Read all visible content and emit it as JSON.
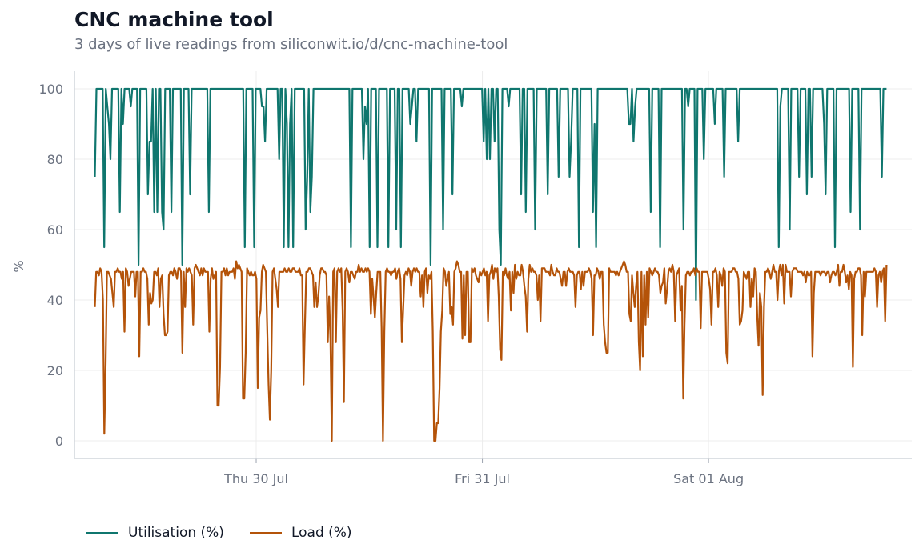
{
  "title": "CNC machine tool",
  "subtitle": "3 days of live readings from siliconwit.io/d/cnc-machine-tool",
  "colors": {
    "utilisation": "#0f766e",
    "load": "#b45309",
    "grid": "#ececec",
    "axis": "#d1d5db"
  },
  "chart_data": {
    "type": "line",
    "title": "CNC machine tool",
    "xlabel": "",
    "ylabel": "%",
    "ylim": [
      -5,
      105
    ],
    "yticks": [
      0,
      20,
      40,
      60,
      80,
      100
    ],
    "xlim": [
      "2025-07-29 04:43",
      "2025-08-01 21:34"
    ],
    "xticks": [
      {
        "date": "2025-07-30",
        "label": "Thu 30 Jul"
      },
      {
        "date": "2025-07-31",
        "label": "Fri 31 Jul"
      },
      {
        "date": "2025-08-01",
        "label": "Sat 01 Aug"
      }
    ],
    "grid": true,
    "legend": "bottom-left",
    "x_start": "2025-07-29 06:53",
    "x_end": "2025-08-01 18:53",
    "x_interval_minutes": 35,
    "series": [
      {
        "name": "Utilisation (%)",
        "values": [
          75,
          100,
          100,
          100,
          100,
          100,
          55,
          100,
          95,
          90,
          80,
          100,
          100,
          100,
          100,
          100,
          65,
          100,
          90,
          100,
          100,
          100,
          100,
          95,
          100,
          100,
          100,
          100,
          50,
          100,
          100,
          100,
          100,
          100,
          70,
          85,
          85,
          100,
          65,
          100,
          65,
          100,
          100,
          65,
          60,
          100,
          100,
          100,
          100,
          65,
          100,
          100,
          100,
          100,
          100,
          100,
          50,
          100,
          100,
          100,
          100,
          70,
          100,
          100,
          100,
          100,
          100,
          100,
          100,
          100,
          100,
          100,
          100,
          65,
          100,
          100,
          100,
          100,
          100,
          100,
          100,
          100,
          100,
          100,
          100,
          100,
          100,
          100,
          100,
          100,
          100,
          100,
          100,
          100,
          100,
          100,
          55,
          100,
          100,
          100,
          100,
          100,
          55,
          100,
          100,
          100,
          100,
          95,
          95,
          85,
          100,
          100,
          100,
          100,
          100,
          100,
          100,
          100,
          80,
          100,
          100,
          55,
          100,
          90,
          55,
          90,
          100,
          55,
          100,
          100,
          100,
          100,
          100,
          100,
          100,
          60,
          75,
          100,
          65,
          75,
          100,
          100,
          100,
          100,
          100,
          100,
          100,
          100,
          100,
          100,
          100,
          100,
          100,
          100,
          100,
          100,
          100,
          100,
          100,
          100,
          100,
          100,
          100,
          100,
          55,
          100,
          100,
          100,
          100,
          100,
          100,
          100,
          80,
          95,
          90,
          100,
          55,
          100,
          100,
          100,
          100,
          55,
          100,
          100,
          100,
          100,
          100,
          100,
          55,
          100,
          100,
          100,
          100,
          60,
          100,
          100,
          55,
          100,
          100,
          100,
          100,
          100,
          90,
          95,
          100,
          100,
          85,
          100,
          100,
          100,
          100,
          100,
          100,
          100,
          100,
          50,
          100,
          100,
          100,
          100,
          100,
          100,
          100,
          60,
          100,
          100,
          100,
          100,
          100,
          70,
          100,
          100,
          100,
          100,
          100,
          95,
          100,
          100,
          100,
          100,
          100,
          100,
          100,
          100,
          100,
          100,
          100,
          100,
          100,
          85,
          100,
          80,
          100,
          80,
          100,
          100,
          85,
          100,
          100,
          60,
          50,
          100,
          100,
          100,
          100,
          95,
          100,
          100,
          100,
          100,
          100,
          100,
          100,
          70,
          100,
          100,
          65,
          100,
          100,
          100,
          100,
          100,
          60,
          100,
          100,
          100,
          100,
          100,
          100,
          100,
          70,
          100,
          100,
          100,
          100,
          100,
          100,
          75,
          100,
          100,
          100,
          100,
          100,
          100,
          75,
          85,
          100,
          100,
          100,
          100,
          55,
          100,
          100,
          100,
          100,
          100,
          100,
          100,
          100,
          65,
          90,
          55,
          100,
          100,
          100,
          100,
          100,
          100,
          100,
          100,
          100,
          100,
          100,
          100,
          100,
          100,
          100,
          100,
          100,
          100,
          100,
          100,
          90,
          90,
          100,
          85,
          95,
          100,
          100,
          100,
          100,
          100,
          100,
          100,
          100,
          100,
          65,
          100,
          100,
          100,
          100,
          100,
          55,
          100,
          100,
          100,
          100,
          100,
          100,
          100,
          100,
          100,
          100,
          100,
          100,
          100,
          100,
          60,
          100,
          100,
          95,
          100,
          100,
          100,
          100,
          40,
          100,
          100,
          100,
          100,
          80,
          100,
          100,
          100,
          100,
          100,
          100,
          90,
          100,
          100,
          100,
          100,
          100,
          75,
          100,
          100,
          100,
          100,
          100,
          100,
          100,
          100,
          85,
          100,
          100,
          100,
          100,
          100,
          100,
          100,
          100,
          100,
          100,
          100,
          100,
          100,
          100,
          100,
          100,
          100,
          100,
          100,
          100,
          100,
          100,
          100,
          100,
          100,
          55,
          95,
          100,
          100,
          100,
          100,
          100,
          60,
          100,
          100,
          100,
          100,
          100,
          75,
          100,
          100,
          100,
          100,
          70,
          100,
          100,
          75,
          100,
          100,
          100,
          100,
          100,
          100,
          100,
          90,
          70,
          100,
          100,
          100,
          100,
          100,
          55,
          100,
          100,
          100,
          100,
          100,
          100,
          100,
          100,
          100,
          65,
          100,
          100,
          100,
          100,
          100,
          60,
          100,
          100,
          100,
          100,
          100,
          100,
          100,
          100,
          100,
          100,
          100,
          100,
          100,
          75,
          100,
          100,
          100
        ]
      },
      {
        "name": "Load (%)",
        "values": [
          38,
          48,
          48,
          47,
          49,
          48,
          40,
          2,
          22,
          48,
          48,
          47,
          46,
          42,
          38,
          48,
          48,
          49,
          48,
          48,
          46,
          48,
          31,
          49,
          48,
          44,
          46,
          48,
          48,
          48,
          41,
          48,
          48,
          24,
          48,
          48,
          49,
          48,
          48,
          46,
          33,
          42,
          39,
          40,
          48,
          48,
          47,
          49,
          38,
          46,
          47,
          36,
          30,
          30,
          31,
          47,
          48,
          48,
          47,
          49,
          48,
          46,
          49,
          49,
          48,
          25,
          48,
          38,
          49,
          48,
          49,
          48,
          47,
          33,
          49,
          50,
          49,
          48,
          47,
          49,
          47,
          49,
          48,
          48,
          48,
          31,
          46,
          49,
          46,
          47,
          48,
          10,
          10,
          21,
          48,
          48,
          49,
          47,
          49,
          47,
          48,
          48,
          48,
          49,
          46,
          51,
          49,
          50,
          49,
          48,
          12,
          12,
          25,
          49,
          48,
          47,
          48,
          47,
          47,
          48,
          46,
          15,
          35,
          37,
          48,
          50,
          49,
          48,
          32,
          16,
          6,
          20,
          48,
          49,
          46,
          43,
          38,
          48,
          48,
          48,
          48,
          49,
          48,
          48,
          49,
          48,
          48,
          49,
          49,
          48,
          48,
          48,
          49,
          47,
          47,
          16,
          33,
          48,
          48,
          49,
          49,
          48,
          47,
          38,
          45,
          38,
          41,
          47,
          49,
          49,
          48,
          48,
          47,
          28,
          41,
          29,
          0,
          48,
          49,
          28,
          48,
          49,
          48,
          49,
          37,
          11,
          48,
          49,
          48,
          45,
          48,
          48,
          47,
          46,
          48,
          48,
          50,
          48,
          49,
          48,
          48,
          49,
          48,
          49,
          48,
          36,
          46,
          41,
          35,
          42,
          48,
          48,
          48,
          32,
          0,
          31,
          48,
          49,
          48,
          48,
          47,
          48,
          48,
          49,
          46,
          48,
          49,
          46,
          28,
          37,
          47,
          48,
          47,
          49,
          48,
          44,
          48,
          49,
          48,
          49,
          48,
          48,
          41,
          47,
          38,
          48,
          49,
          42,
          47,
          46,
          48,
          31,
          0,
          0,
          5,
          5,
          15,
          31,
          37,
          49,
          48,
          44,
          46,
          48,
          36,
          38,
          33,
          48,
          49,
          51,
          50,
          48,
          48,
          29,
          47,
          30,
          48,
          48,
          28,
          28,
          49,
          48,
          49,
          47,
          46,
          45,
          48,
          47,
          48,
          49,
          47,
          48,
          34,
          47,
          48,
          50,
          46,
          49,
          48,
          49,
          41,
          26,
          23,
          48,
          47,
          49,
          47,
          46,
          48,
          37,
          48,
          42,
          50,
          46,
          48,
          47,
          47,
          50,
          48,
          44,
          41,
          31,
          46,
          50,
          48,
          49,
          48,
          48,
          47,
          40,
          47,
          34,
          49,
          49,
          49,
          48,
          48,
          48,
          47,
          50,
          48,
          47,
          47,
          49,
          48,
          48,
          46,
          44,
          48,
          48,
          44,
          48,
          49,
          48,
          48,
          48,
          47,
          38,
          47,
          48,
          48,
          43,
          48,
          44,
          48,
          48,
          48,
          49,
          48,
          46,
          30,
          47,
          47,
          49,
          48,
          46,
          48,
          48,
          33,
          28,
          25,
          25,
          49,
          48,
          48,
          48,
          48,
          47,
          48,
          47,
          48,
          49,
          50,
          51,
          50,
          48,
          48,
          36,
          34,
          47,
          42,
          38,
          44,
          48,
          28,
          20,
          48,
          24,
          47,
          33,
          48,
          35,
          49,
          48,
          47,
          48,
          49,
          48,
          48,
          47,
          42,
          44,
          45,
          49,
          39,
          43,
          48,
          49,
          48,
          50,
          48,
          34,
          47,
          48,
          49,
          37,
          44,
          12,
          33,
          47,
          48,
          48,
          47,
          48,
          48,
          49,
          47,
          49,
          48,
          48,
          32,
          48,
          48,
          48,
          48,
          48,
          46,
          43,
          33,
          48,
          48,
          49,
          47,
          38,
          48,
          47,
          44,
          49,
          48,
          25,
          22,
          48,
          48,
          48,
          49,
          49,
          48,
          48,
          46,
          33,
          34,
          37,
          48,
          47,
          46,
          48,
          48,
          38,
          46,
          41,
          49,
          48,
          35,
          27,
          42,
          38,
          13,
          38,
          48,
          48,
          49,
          48,
          46,
          48,
          50,
          48,
          48,
          40,
          48,
          50,
          47,
          50,
          39,
          50,
          48,
          48,
          48,
          41,
          48,
          49,
          49,
          49,
          48,
          48,
          48,
          48,
          47,
          48,
          45,
          48,
          47,
          47,
          48,
          24,
          42,
          48,
          48,
          48,
          48,
          47,
          48,
          48,
          48,
          47,
          48,
          48,
          45,
          47,
          48,
          48,
          47,
          48,
          50,
          44,
          48,
          48,
          50,
          48,
          45,
          47,
          43,
          48,
          47,
          21,
          46,
          48,
          48,
          49,
          49,
          47,
          30,
          48,
          41,
          48,
          48,
          48,
          48,
          48,
          48,
          49,
          48,
          38,
          47,
          48,
          45,
          48,
          49,
          34,
          50
        ]
      }
    ]
  },
  "legend": [
    {
      "label": "Utilisation (%)",
      "color": "#0f766e"
    },
    {
      "label": "Load (%)",
      "color": "#b45309"
    }
  ]
}
